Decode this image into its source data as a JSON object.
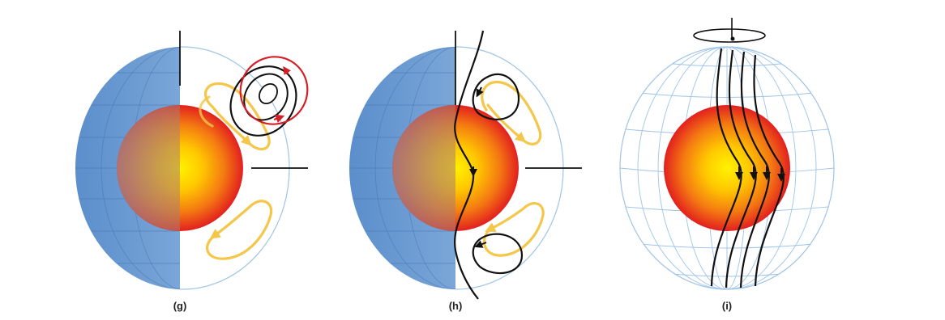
{
  "labels": {
    "g": "(g)",
    "h": "(h)",
    "i": "(i)"
  },
  "colors": {
    "mantle_blue": "#5d8fcb",
    "grid_blue": "#9fc4e8",
    "core_yellow": "#ffd800",
    "core_red": "#e21c20",
    "flow_yellow": "#f4c64a",
    "field_black": "#111111",
    "field_red": "#d51f26"
  }
}
